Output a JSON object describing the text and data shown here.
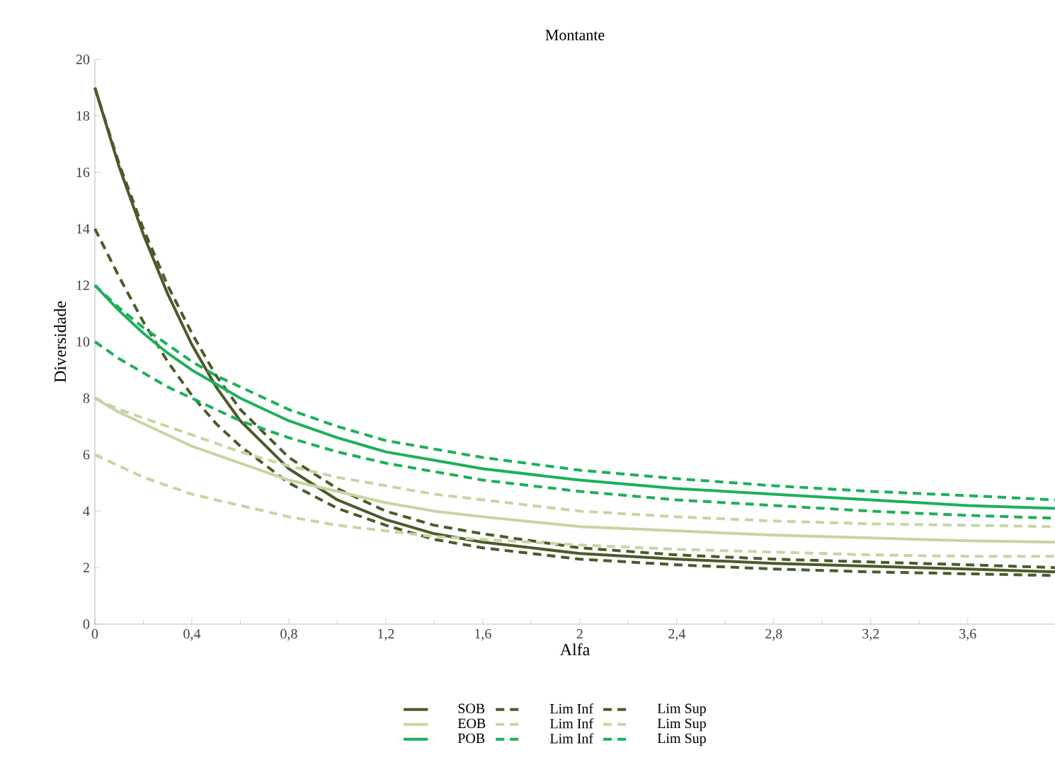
{
  "chart_data": {
    "type": "line",
    "title": "Montante",
    "xlabel": "Alfa",
    "ylabel": "Diversidade",
    "x": [
      0,
      0.1,
      0.2,
      0.3,
      0.4,
      0.5,
      0.6,
      0.8,
      1.0,
      1.2,
      1.4,
      1.6,
      2.0,
      2.4,
      2.8,
      3.2,
      3.6,
      3.96
    ],
    "xlim": [
      0,
      3.96
    ],
    "ylim": [
      0,
      20
    ],
    "xticks": [
      0,
      {
        "value": 0.4,
        "label": "0,4"
      },
      {
        "value": 0.8,
        "label": "0,8"
      },
      {
        "value": 1.2,
        "label": "1,2"
      },
      {
        "value": 1.6,
        "label": "1,6"
      },
      2,
      {
        "value": 2.4,
        "label": "2,4"
      },
      {
        "value": 2.8,
        "label": "2,8"
      },
      {
        "value": 3.2,
        "label": "3,2"
      },
      {
        "value": 3.6,
        "label": "3,6"
      }
    ],
    "yticks": [
      0,
      2,
      4,
      6,
      8,
      10,
      12,
      14,
      16,
      18,
      20
    ],
    "grid": false,
    "legend": "bottom",
    "series": [
      {
        "name": "SOB",
        "color": "#4b5a2a",
        "line_style": "solid",
        "values": [
          19,
          16.2,
          13.8,
          11.7,
          9.9,
          8.4,
          7.2,
          5.5,
          4.4,
          3.7,
          3.2,
          2.9,
          2.5,
          2.3,
          2.15,
          2.05,
          1.95,
          1.85
        ]
      },
      {
        "name": "Lim Inf",
        "color": "#4b5a2a",
        "line_style": "dashed",
        "values": [
          14,
          12.3,
          10.7,
          9.3,
          8.1,
          7.1,
          6.3,
          5.0,
          4.1,
          3.5,
          3.0,
          2.7,
          2.3,
          2.1,
          1.95,
          1.85,
          1.78,
          1.72
        ]
      },
      {
        "name": "Lim Sup",
        "color": "#4b5a2a",
        "line_style": "dashed",
        "values": [
          19,
          16.3,
          14,
          12,
          10.3,
          8.8,
          7.6,
          5.9,
          4.8,
          4.0,
          3.5,
          3.2,
          2.7,
          2.45,
          2.3,
          2.2,
          2.1,
          2.0
        ]
      },
      {
        "name": "EOB",
        "color": "#c5d6a0",
        "line_style": "solid",
        "values": [
          8,
          7.5,
          7.1,
          6.7,
          6.3,
          6.0,
          5.7,
          5.1,
          4.7,
          4.3,
          4.0,
          3.8,
          3.45,
          3.3,
          3.15,
          3.05,
          2.95,
          2.9
        ]
      },
      {
        "name": "Lim Inf",
        "color": "#c5d6a0",
        "line_style": "dashed",
        "values": [
          6,
          5.6,
          5.2,
          4.9,
          4.6,
          4.4,
          4.2,
          3.8,
          3.5,
          3.3,
          3.1,
          3.0,
          2.8,
          2.65,
          2.55,
          2.45,
          2.4,
          2.4
        ]
      },
      {
        "name": "Lim Sup",
        "color": "#c5d6a0",
        "line_style": "dashed",
        "values": [
          8,
          7.6,
          7.3,
          7.0,
          6.7,
          6.4,
          6.1,
          5.6,
          5.2,
          4.9,
          4.6,
          4.4,
          4.0,
          3.8,
          3.65,
          3.55,
          3.5,
          3.45
        ]
      },
      {
        "name": "POB",
        "color": "#1db05a",
        "line_style": "solid",
        "values": [
          12,
          11.1,
          10.3,
          9.6,
          9.0,
          8.5,
          8.0,
          7.2,
          6.6,
          6.1,
          5.8,
          5.5,
          5.1,
          4.8,
          4.6,
          4.4,
          4.2,
          4.1
        ]
      },
      {
        "name": "Lim Inf",
        "color": "#1db05a",
        "line_style": "dashed",
        "values": [
          10,
          9.4,
          8.9,
          8.4,
          8.0,
          7.6,
          7.2,
          6.6,
          6.1,
          5.7,
          5.4,
          5.1,
          4.7,
          4.4,
          4.2,
          4.0,
          3.85,
          3.75
        ]
      },
      {
        "name": "Lim Sup",
        "color": "#1db05a",
        "line_style": "dashed",
        "values": [
          12,
          11.2,
          10.5,
          9.9,
          9.3,
          8.8,
          8.4,
          7.6,
          7.0,
          6.5,
          6.2,
          5.9,
          5.45,
          5.15,
          4.9,
          4.7,
          4.55,
          4.4
        ]
      }
    ]
  }
}
